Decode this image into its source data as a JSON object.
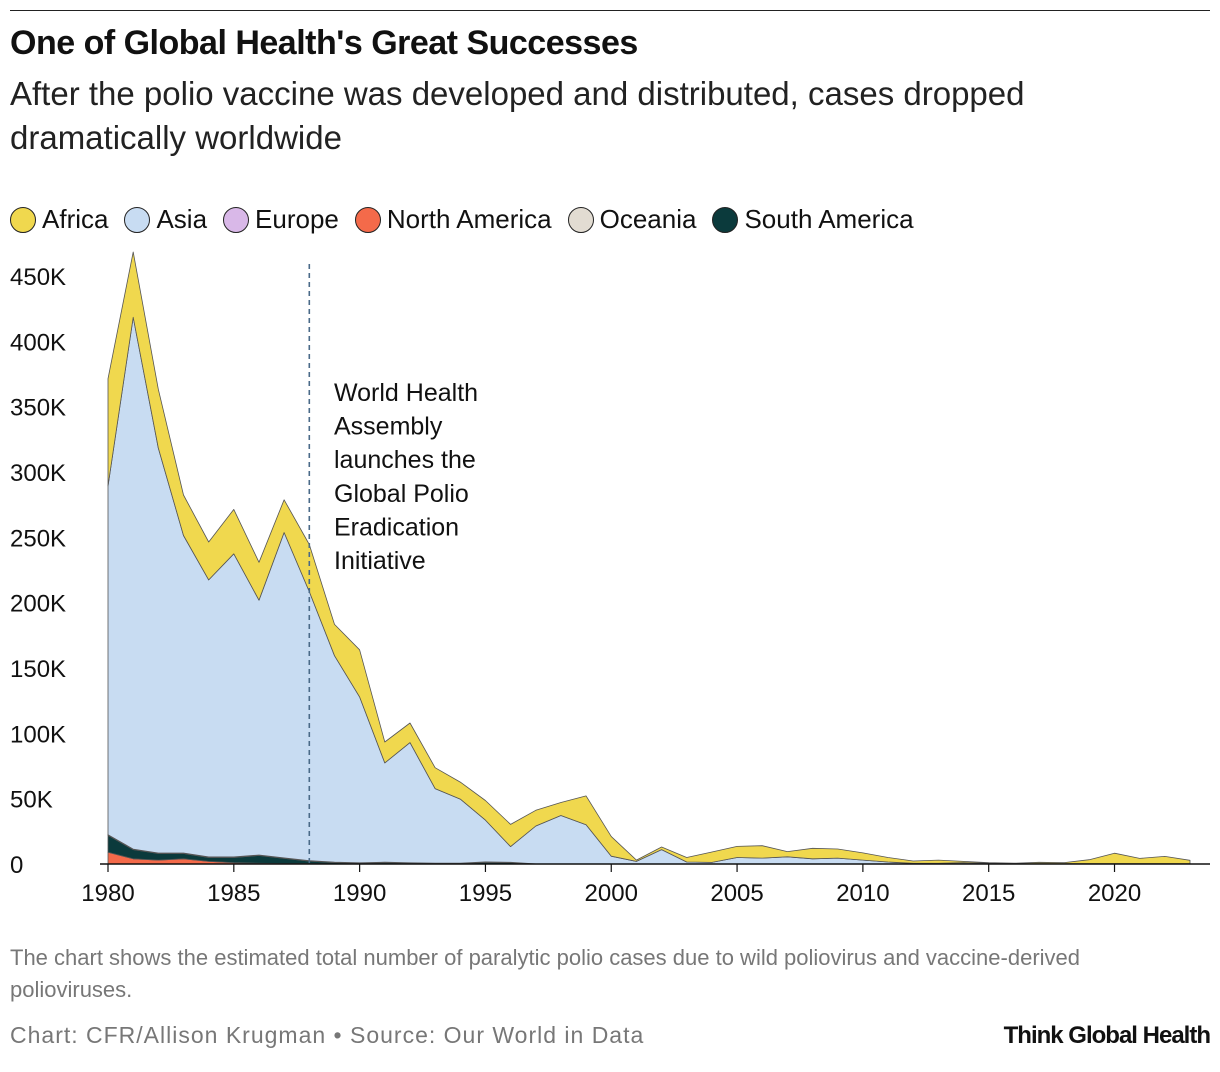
{
  "header": {
    "title": "One of Global Health's Great Successes",
    "subtitle": "After the polio vaccine was developed and distributed, cases dropped dramatically worldwide"
  },
  "legend": [
    {
      "label": "Africa",
      "color": "#f0d84e"
    },
    {
      "label": "Asia",
      "color": "#c8dcf2"
    },
    {
      "label": "Europe",
      "color": "#d9b8e8"
    },
    {
      "label": "North America",
      "color": "#f46a4a"
    },
    {
      "label": "Oceania",
      "color": "#e2dcd2"
    },
    {
      "label": "South America",
      "color": "#0b3a3c"
    }
  ],
  "footer": {
    "note": "The chart shows the estimated total number of paralytic polio cases due to wild poliovirus and vaccine-derived polioviruses.",
    "credit": "Chart: CFR/Allison Krugman • Source: Our World in Data",
    "brand": "Think Global Health"
  },
  "chart_data": {
    "type": "area",
    "stacked": true,
    "title": "One of Global Health's Great Successes",
    "x": [
      1980,
      1981,
      1982,
      1983,
      1984,
      1985,
      1986,
      1987,
      1988,
      1989,
      1990,
      1991,
      1992,
      1993,
      1994,
      1995,
      1996,
      1997,
      1998,
      1999,
      2000,
      2001,
      2002,
      2003,
      2004,
      2005,
      2006,
      2007,
      2008,
      2009,
      2010,
      2011,
      2012,
      2013,
      2014,
      2015,
      2016,
      2017,
      2018,
      2019,
      2020,
      2021,
      2022,
      2023
    ],
    "xlim": [
      1980,
      2023
    ],
    "xticks": [
      1980,
      1985,
      1990,
      1995,
      2000,
      2005,
      2010,
      2015,
      2020
    ],
    "ylim": [
      0,
      460000
    ],
    "yticks": [
      0,
      50000,
      100000,
      150000,
      200000,
      250000,
      300000,
      350000,
      400000,
      450000
    ],
    "ytick_labels": [
      "0",
      "50K",
      "100K",
      "150K",
      "200K",
      "250K",
      "300K",
      "350K",
      "400K",
      "450K"
    ],
    "grid": false,
    "legend_position": "top-left",
    "series": [
      {
        "name": "North America",
        "color": "#f46a4a",
        "values": [
          9000,
          4000,
          3000,
          4000,
          2000,
          1000,
          500,
          300,
          200,
          100,
          100,
          100,
          100,
          100,
          100,
          100,
          100,
          0,
          0,
          0,
          0,
          0,
          0,
          0,
          0,
          0,
          0,
          0,
          0,
          0,
          0,
          0,
          0,
          0,
          0,
          0,
          0,
          0,
          0,
          0,
          0,
          0,
          0,
          0
        ]
      },
      {
        "name": "South America",
        "color": "#0b3a3c",
        "values": [
          13000,
          7000,
          5000,
          4000,
          3000,
          4000,
          6000,
          4000,
          2000,
          1000,
          500,
          1000,
          500,
          300,
          300,
          1200,
          1000,
          0,
          0,
          0,
          0,
          0,
          0,
          0,
          0,
          0,
          0,
          0,
          0,
          0,
          0,
          0,
          0,
          0,
          0,
          0,
          0,
          0,
          0,
          0,
          0,
          0,
          0,
          0
        ]
      },
      {
        "name": "Europe",
        "color": "#d9b8e8",
        "values": [
          300,
          300,
          300,
          300,
          300,
          300,
          300,
          300,
          200,
          200,
          200,
          200,
          200,
          200,
          200,
          200,
          100,
          100,
          100,
          100,
          0,
          0,
          0,
          0,
          0,
          0,
          0,
          0,
          0,
          0,
          0,
          0,
          0,
          0,
          0,
          0,
          0,
          0,
          0,
          0,
          0,
          0,
          0,
          0
        ]
      },
      {
        "name": "Oceania",
        "color": "#e2dcd2",
        "values": [
          100,
          100,
          100,
          100,
          100,
          100,
          100,
          100,
          100,
          100,
          100,
          100,
          100,
          100,
          100,
          100,
          100,
          0,
          0,
          0,
          0,
          0,
          0,
          0,
          0,
          0,
          0,
          0,
          0,
          0,
          0,
          0,
          0,
          0,
          0,
          0,
          0,
          0,
          0,
          0,
          0,
          0,
          0,
          0
        ]
      },
      {
        "name": "Asia",
        "color": "#c8dcf2",
        "values": [
          267000,
          407000,
          310000,
          243000,
          212000,
          232000,
          195000,
          249000,
          206000,
          158000,
          127000,
          76000,
          92000,
          57000,
          49000,
          32000,
          12000,
          29000,
          37000,
          30000,
          6000,
          2000,
          11000,
          1500,
          1200,
          5000,
          4500,
          5500,
          4000,
          4500,
          3000,
          1500,
          500,
          500,
          1000,
          500,
          300,
          300,
          300,
          300,
          300,
          300,
          300,
          300
        ]
      },
      {
        "name": "Africa",
        "color": "#f0d84e",
        "values": [
          82000,
          50000,
          45000,
          31000,
          29000,
          34000,
          29000,
          25000,
          36000,
          24000,
          36000,
          16000,
          15000,
          16000,
          13000,
          15000,
          17000,
          12000,
          10000,
          22000,
          15000,
          1000,
          2000,
          3500,
          8000,
          8500,
          9500,
          4000,
          8000,
          7000,
          5500,
          3500,
          1800,
          2500,
          1000,
          500,
          300,
          1000,
          800,
          3000,
          8000,
          4000,
          5500,
          2500
        ]
      }
    ],
    "annotations": [
      {
        "x": 1988,
        "style": "dashed-vertical-line",
        "text": [
          "World Health",
          "Assembly",
          "launches the",
          "Global Polio",
          "Eradication",
          "Initiative"
        ]
      }
    ]
  }
}
